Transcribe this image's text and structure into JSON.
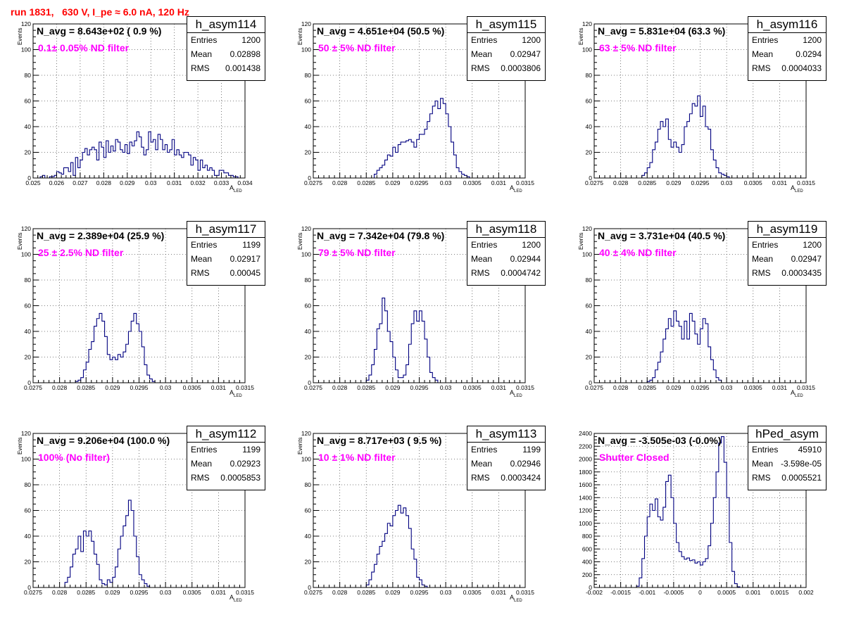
{
  "run_title": "run 1831,   630 V, I_pe ≈ 6.0 nA, 120 Hz",
  "colors": {
    "histogram": "#000080",
    "title": "#ff0000",
    "filter_label": "#ff00ff",
    "grid": "#555555"
  },
  "chart_data": [
    {
      "type": "histogram",
      "name": "h_asym114",
      "navg": "N_avg = 8.643e+02 ( 0.9 %)",
      "filter": "0.1± 0.05% ND filter",
      "stats": {
        "entries": "1200",
        "mean": "0.02898",
        "rms": "0.001438"
      },
      "xlabel": "A",
      "xlabel_sub": "LED",
      "ylabel": "Events",
      "xlim": [
        0.025,
        0.034
      ],
      "ylim": [
        0,
        120
      ],
      "xticks": [
        "0.025",
        "0.026",
        "0.027",
        "0.028",
        "0.029",
        "0.03",
        "0.031",
        "0.032",
        "0.033",
        "0.034"
      ],
      "yticks": [
        "0",
        "20",
        "40",
        "60",
        "80",
        "100",
        "120"
      ],
      "bin_width": 0.0001,
      "x_start": 0.0253,
      "values": [
        1,
        2,
        0,
        0,
        1,
        1,
        2,
        5,
        4,
        3,
        8,
        8,
        5,
        12,
        2,
        16,
        8,
        14,
        20,
        23,
        18,
        22,
        24,
        22,
        14,
        28,
        24,
        16,
        29,
        20,
        25,
        21,
        30,
        28,
        22,
        20,
        26,
        19,
        28,
        25,
        29,
        36,
        32,
        24,
        18,
        22,
        36,
        28,
        30,
        22,
        34,
        30,
        22,
        26,
        20,
        22,
        30,
        18,
        22,
        18,
        16,
        20,
        20,
        18,
        10,
        16,
        14,
        6,
        14,
        8,
        10,
        6,
        8,
        6,
        2,
        2,
        6,
        6,
        4,
        4,
        2,
        2,
        1,
        1
      ]
    },
    {
      "type": "histogram",
      "name": "h_asym115",
      "navg": "N_avg = 4.651e+04 (50.5 %)",
      "filter": "50 ± 5% ND filter",
      "stats": {
        "entries": "1200",
        "mean": "0.02947",
        "rms": "0.0003806"
      },
      "xlabel": "A",
      "xlabel_sub": "LED",
      "ylabel": "Events",
      "xlim": [
        0.0275,
        0.0315
      ],
      "ylim": [
        0,
        120
      ],
      "xticks": [
        "0.0275",
        "0.028",
        "0.0285",
        "0.029",
        "0.0295",
        "0.03",
        "0.0305",
        "0.031",
        "0.0315"
      ],
      "yticks": [
        "0",
        "20",
        "40",
        "60",
        "80",
        "100",
        "120"
      ],
      "bin_width": 5e-05,
      "x_start": 0.02865,
      "values": [
        3,
        6,
        8,
        10,
        14,
        18,
        17,
        24,
        20,
        26,
        28,
        28,
        29,
        30,
        28,
        24,
        30,
        34,
        34,
        38,
        44,
        50,
        56,
        60,
        54,
        62,
        58,
        50,
        40,
        28,
        18,
        8,
        5,
        3,
        2,
        1
      ]
    },
    {
      "type": "histogram",
      "name": "h_asym116",
      "navg": "N_avg = 5.831e+04 (63.3 %)",
      "filter": "63 ± 5% ND filter",
      "stats": {
        "entries": "1200",
        "mean": "0.0294",
        "rms": "0.0004033"
      },
      "xlabel": "A",
      "xlabel_sub": "LED",
      "ylabel": "Events",
      "xlim": [
        0.0275,
        0.0315
      ],
      "ylim": [
        0,
        120
      ],
      "xticks": [
        "0.0275",
        "0.028",
        "0.0285",
        "0.029",
        "0.0295",
        "0.03",
        "0.0305",
        "0.031",
        "0.0315"
      ],
      "yticks": [
        "0",
        "20",
        "40",
        "60",
        "80",
        "100",
        "120"
      ],
      "bin_width": 5e-05,
      "x_start": 0.0284,
      "values": [
        2,
        4,
        8,
        12,
        22,
        28,
        38,
        44,
        40,
        46,
        30,
        24,
        28,
        24,
        20,
        26,
        40,
        44,
        50,
        58,
        56,
        64,
        48,
        56,
        40,
        38,
        22,
        14,
        8,
        4,
        3,
        2,
        1
      ]
    },
    {
      "type": "histogram",
      "name": "h_asym117",
      "navg": "N_avg = 2.389e+04 (25.9 %)",
      "filter": "25 ± 2.5% ND filter",
      "stats": {
        "entries": "1199",
        "mean": "0.02917",
        "rms": "0.00045"
      },
      "xlabel": "A",
      "xlabel_sub": "LED",
      "ylabel": "Events",
      "xlim": [
        0.0275,
        0.0315
      ],
      "ylim": [
        0,
        120
      ],
      "xticks": [
        "0.0275",
        "0.028",
        "0.0285",
        "0.029",
        "0.0295",
        "0.03",
        "0.0305",
        "0.031",
        "0.0315"
      ],
      "yticks": [
        "0",
        "20",
        "40",
        "60",
        "80",
        "100",
        "120"
      ],
      "bin_width": 5e-05,
      "x_start": 0.0283,
      "values": [
        1,
        2,
        4,
        10,
        16,
        26,
        32,
        44,
        50,
        54,
        48,
        36,
        22,
        18,
        20,
        18,
        22,
        20,
        24,
        30,
        40,
        48,
        54,
        46,
        40,
        28,
        14,
        6,
        3,
        1
      ]
    },
    {
      "type": "histogram",
      "name": "h_asym118",
      "navg": "N_avg = 7.342e+04 (79.8 %)",
      "filter": "79 ± 5% ND filter",
      "stats": {
        "entries": "1200",
        "mean": "0.02944",
        "rms": "0.0004742"
      },
      "xlabel": "A",
      "xlabel_sub": "LED",
      "ylabel": "Events",
      "xlim": [
        0.0275,
        0.0315
      ],
      "ylim": [
        0,
        120
      ],
      "xticks": [
        "0.0275",
        "0.028",
        "0.0285",
        "0.029",
        "0.0295",
        "0.03",
        "0.0305",
        "0.031",
        "0.0315"
      ],
      "yticks": [
        "0",
        "20",
        "40",
        "60",
        "80",
        "100",
        "120"
      ],
      "bin_width": 5e-05,
      "x_start": 0.0285,
      "values": [
        2,
        6,
        14,
        26,
        42,
        46,
        66,
        56,
        40,
        32,
        20,
        10,
        4,
        4,
        6,
        14,
        30,
        46,
        56,
        48,
        56,
        48,
        34,
        20,
        8,
        4,
        2
      ]
    },
    {
      "type": "histogram",
      "name": "h_asym119",
      "navg": "N_avg = 3.731e+04 (40.5 %)",
      "filter": "40 ± 4% ND filter",
      "stats": {
        "entries": "1200",
        "mean": "0.02947",
        "rms": "0.0003435"
      },
      "xlabel": "A",
      "xlabel_sub": "LED",
      "ylabel": "Events",
      "xlim": [
        0.0275,
        0.0315
      ],
      "ylim": [
        0,
        120
      ],
      "xticks": [
        "0.0275",
        "0.028",
        "0.0285",
        "0.029",
        "0.0295",
        "0.03",
        "0.0305",
        "0.031",
        "0.0315"
      ],
      "yticks": [
        "0",
        "20",
        "40",
        "60",
        "80",
        "100",
        "120"
      ],
      "bin_width": 5e-05,
      "x_start": 0.0285,
      "values": [
        1,
        2,
        4,
        10,
        16,
        24,
        34,
        42,
        50,
        44,
        56,
        48,
        44,
        34,
        48,
        34,
        54,
        48,
        38,
        30,
        42,
        50,
        46,
        28,
        18,
        10,
        4,
        2
      ]
    },
    {
      "type": "histogram",
      "name": "h_asym112",
      "navg": "N_avg = 9.206e+04 (100.0 %)",
      "filter": "100% (No filter)",
      "stats": {
        "entries": "1199",
        "mean": "0.02923",
        "rms": "0.0005853"
      },
      "xlabel": "A",
      "xlabel_sub": "LED",
      "ylabel": "Events",
      "xlim": [
        0.0275,
        0.0315
      ],
      "ylim": [
        0,
        120
      ],
      "xticks": [
        "0.0275",
        "0.028",
        "0.0285",
        "0.029",
        "0.0295",
        "0.03",
        "0.0305",
        "0.031",
        "0.0315"
      ],
      "yticks": [
        "0",
        "20",
        "40",
        "60",
        "80",
        "100",
        "120"
      ],
      "bin_width": 5e-05,
      "x_start": 0.0281,
      "values": [
        4,
        8,
        16,
        26,
        30,
        40,
        28,
        44,
        40,
        44,
        36,
        26,
        18,
        6,
        3,
        2,
        6,
        4,
        8,
        16,
        30,
        40,
        48,
        56,
        68,
        60,
        40,
        24,
        10,
        6,
        3,
        1
      ]
    },
    {
      "type": "histogram",
      "name": "h_asym113",
      "navg": "N_avg = 8.717e+03 ( 9.5 %)",
      "filter": "10 ± 1% ND filter",
      "stats": {
        "entries": "1199",
        "mean": "0.02946",
        "rms": "0.0003424"
      },
      "xlabel": "A",
      "xlabel_sub": "LED",
      "ylabel": "Events",
      "xlim": [
        0.0275,
        0.0315
      ],
      "ylim": [
        0,
        120
      ],
      "xticks": [
        "0.0275",
        "0.028",
        "0.0285",
        "0.029",
        "0.0295",
        "0.03",
        "0.0305",
        "0.031",
        "0.0315"
      ],
      "yticks": [
        "0",
        "20",
        "40",
        "60",
        "80",
        "100",
        "120"
      ],
      "bin_width": 5e-05,
      "x_start": 0.0285,
      "values": [
        2,
        6,
        12,
        18,
        26,
        32,
        36,
        42,
        50,
        48,
        56,
        60,
        64,
        58,
        62,
        56,
        46,
        30,
        22,
        8,
        6,
        2,
        1
      ]
    },
    {
      "type": "histogram",
      "name": "hPed_asym",
      "navg": "N_avg = -3.505e-03 (-0.0%)",
      "filter": "Shutter Closed",
      "stats": {
        "entries": "45910",
        "mean": "-3.598e-05",
        "rms": "0.0005521"
      },
      "xlabel": "",
      "xlabel_sub": "",
      "ylabel": "",
      "xlim": [
        -0.002,
        0.002
      ],
      "ylim": [
        0,
        2400
      ],
      "xticks": [
        "-0.002",
        "-0.0015",
        "-0.001",
        "-0.0005",
        "0",
        "0.0005",
        "0.001",
        "0.0015",
        "0.002"
      ],
      "yticks": [
        "0",
        "200",
        "400",
        "600",
        "800",
        "1000",
        "1200",
        "1400",
        "1600",
        "1800",
        "2000",
        "2200",
        "2400"
      ],
      "bin_width": 5e-05,
      "x_start": -0.0012,
      "values": [
        20,
        150,
        450,
        800,
        1100,
        1300,
        1200,
        1380,
        1100,
        1050,
        1250,
        1650,
        1750,
        1400,
        1000,
        700,
        560,
        480,
        440,
        460,
        420,
        430,
        380,
        400,
        350,
        400,
        450,
        650,
        1000,
        1400,
        1800,
        2250,
        2350,
        1950,
        1400,
        700,
        250,
        60,
        10
      ]
    }
  ]
}
